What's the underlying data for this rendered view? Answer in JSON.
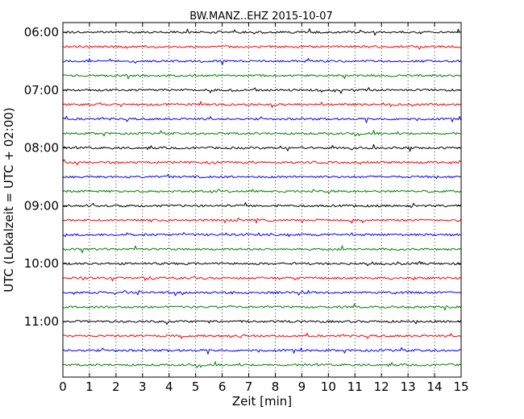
{
  "chart_data": {
    "type": "line",
    "title": "BW.MANZ..EHZ 2015-10-07",
    "xlabel": "Zeit  [min]",
    "ylabel": "UTC (Lokalzeit = UTC + 02:00)",
    "xlim": [
      0,
      15
    ],
    "x_ticks": [
      "0",
      "1",
      "2",
      "3",
      "4",
      "5",
      "6",
      "7",
      "8",
      "9",
      "10",
      "11",
      "12",
      "13",
      "14",
      "15"
    ],
    "y_ticks": [
      "06:00",
      "07:00",
      "08:00",
      "09:00",
      "10:00",
      "11:00"
    ],
    "row_interval_minutes": 15,
    "grid": "vertical dotted",
    "color_cycle": [
      "#000000",
      "#ff0000",
      "#0000ff",
      "#008000"
    ],
    "series": [
      {
        "start": "06:00",
        "color": "#000000"
      },
      {
        "start": "06:15",
        "color": "#ff0000"
      },
      {
        "start": "06:30",
        "color": "#0000ff"
      },
      {
        "start": "06:45",
        "color": "#008000"
      },
      {
        "start": "07:00",
        "color": "#000000"
      },
      {
        "start": "07:15",
        "color": "#ff0000"
      },
      {
        "start": "07:30",
        "color": "#0000ff"
      },
      {
        "start": "07:45",
        "color": "#008000"
      },
      {
        "start": "08:00",
        "color": "#000000"
      },
      {
        "start": "08:15",
        "color": "#ff0000"
      },
      {
        "start": "08:30",
        "color": "#0000ff"
      },
      {
        "start": "08:45",
        "color": "#008000"
      },
      {
        "start": "09:00",
        "color": "#000000"
      },
      {
        "start": "09:15",
        "color": "#ff0000"
      },
      {
        "start": "09:30",
        "color": "#0000ff"
      },
      {
        "start": "09:45",
        "color": "#008000"
      },
      {
        "start": "10:00",
        "color": "#000000"
      },
      {
        "start": "10:15",
        "color": "#ff0000"
      },
      {
        "start": "10:30",
        "color": "#0000ff"
      },
      {
        "start": "10:45",
        "color": "#008000"
      },
      {
        "start": "11:00",
        "color": "#000000"
      },
      {
        "start": "11:15",
        "color": "#ff0000"
      },
      {
        "start": "11:30",
        "color": "#0000ff"
      },
      {
        "start": "11:45",
        "color": "#008000"
      }
    ]
  }
}
